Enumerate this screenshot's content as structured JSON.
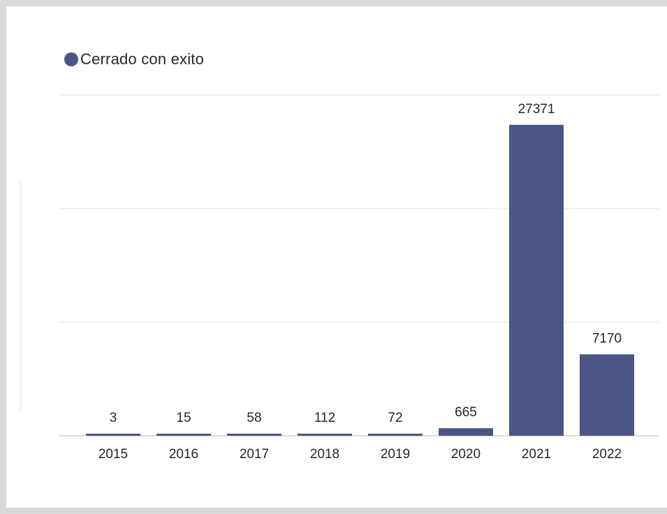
{
  "chart_data": {
    "type": "bar",
    "title": "",
    "xlabel": "",
    "ylabel": "",
    "categories": [
      "2015",
      "2016",
      "2017",
      "2018",
      "2019",
      "2020",
      "2021",
      "2022"
    ],
    "series": [
      {
        "name": "Cerrado con exito",
        "values": [
          3,
          15,
          58,
          112,
          72,
          665,
          27371,
          7170
        ],
        "labels": [
          "3",
          "15",
          "58",
          "112",
          "72",
          "665",
          "27371",
          "7170"
        ],
        "color": "#4b5585"
      }
    ],
    "ylim": [
      0,
      30000
    ],
    "gridlines": [
      0,
      10000,
      20000,
      30000
    ],
    "grid": true,
    "y_axis_visible": false,
    "legend_position": "top-left"
  },
  "legend": {
    "label": "Cerrado con exito",
    "color": "#4b5585"
  }
}
